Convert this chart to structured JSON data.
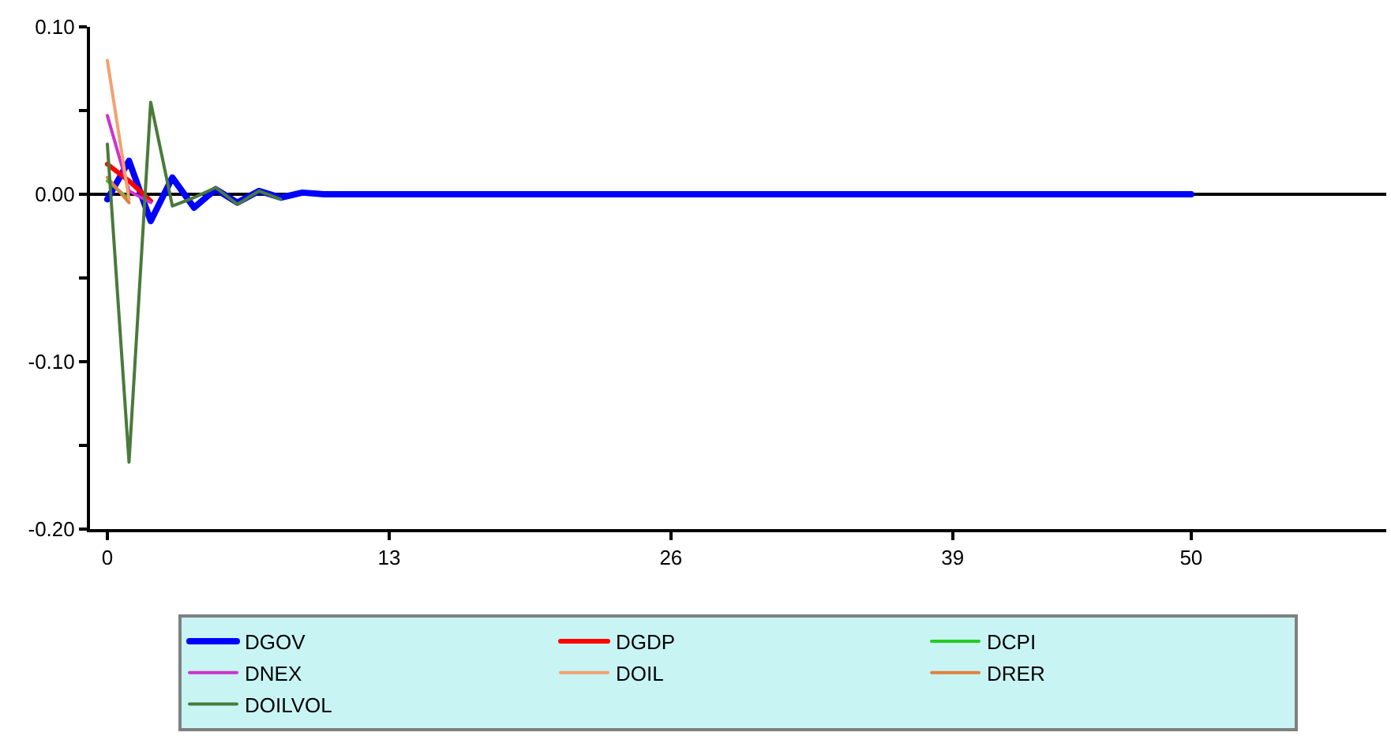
{
  "chart_data": {
    "type": "line",
    "legend": "bottom",
    "grid": false,
    "marker": "none",
    "x": [
      0,
      1,
      2,
      3,
      4,
      5,
      6,
      7,
      8,
      9,
      10,
      11,
      12,
      13,
      14,
      15,
      16,
      17,
      18,
      19,
      20,
      21,
      22,
      23,
      24,
      25,
      26,
      27,
      28,
      29,
      30,
      31,
      32,
      33,
      34,
      35,
      36,
      37,
      38,
      39,
      40,
      41,
      42,
      43,
      44,
      45,
      46,
      47,
      48,
      49,
      50
    ],
    "xlim": [
      -0.8,
      59
    ],
    "xticks": [
      0,
      13,
      26,
      39,
      50
    ],
    "ylim": [
      -0.2,
      0.1
    ],
    "yticks": [
      {
        "value": 0.1,
        "label": "0.10"
      },
      {
        "value": 0.05,
        "label": null
      },
      {
        "value": 0.0,
        "label": "0.00"
      },
      {
        "value": -0.05,
        "label": null
      },
      {
        "value": -0.1,
        "label": "-0.10"
      },
      {
        "value": -0.15,
        "label": null
      },
      {
        "value": -0.2,
        "label": "-0.20"
      }
    ],
    "ref_lines": [
      {
        "axis": "y",
        "value": 0,
        "color": "#000000"
      }
    ],
    "series": [
      {
        "name": "DGOV",
        "color": "#0000ff",
        "values": [
          -0.003,
          0.02,
          -0.016,
          0.01,
          -0.008,
          0.003,
          -0.005,
          0.002,
          -0.002,
          0.001,
          0,
          0,
          0,
          0,
          0,
          0,
          0,
          0,
          0,
          0,
          0,
          0,
          0,
          0,
          0,
          0,
          0,
          0,
          0,
          0,
          0,
          0,
          0,
          0,
          0,
          0,
          0,
          0,
          0,
          0,
          0,
          0,
          0,
          0,
          0,
          0,
          0,
          0,
          0,
          0,
          0
        ]
      },
      {
        "name": "DGDP",
        "color": "#ff0000",
        "values": [
          0.018,
          0.008,
          -0.004,
          null,
          null,
          null,
          null,
          null,
          null,
          null,
          null,
          null,
          null,
          null,
          null,
          null,
          null,
          null,
          null,
          null,
          null,
          null,
          null,
          null,
          null,
          null,
          null,
          null,
          null,
          null,
          null,
          null,
          null,
          null,
          null,
          null,
          null,
          null,
          null,
          null,
          null,
          null,
          null,
          null,
          null,
          null,
          null,
          null,
          null,
          null,
          null
        ]
      },
      {
        "name": "DCPI",
        "color": "#22cc22",
        "values": [
          0.008,
          -0.003,
          null,
          null,
          null,
          null,
          null,
          null,
          null,
          null,
          null,
          null,
          null,
          null,
          null,
          null,
          null,
          null,
          null,
          null,
          null,
          null,
          null,
          null,
          null,
          null,
          null,
          null,
          null,
          null,
          null,
          null,
          null,
          null,
          null,
          null,
          null,
          null,
          null,
          null,
          null,
          null,
          null,
          null,
          null,
          null,
          null,
          null,
          null,
          null,
          null
        ]
      },
      {
        "name": "DNEX",
        "color": "#cc33cc",
        "values": [
          0.047,
          0.002,
          -0.005,
          null,
          null,
          null,
          null,
          null,
          null,
          null,
          null,
          null,
          null,
          null,
          null,
          null,
          null,
          null,
          null,
          null,
          null,
          null,
          null,
          null,
          null,
          null,
          null,
          null,
          null,
          null,
          null,
          null,
          null,
          null,
          null,
          null,
          null,
          null,
          null,
          null,
          null,
          null,
          null,
          null,
          null,
          null,
          null,
          null,
          null,
          null,
          null
        ]
      },
      {
        "name": "DOIL",
        "color": "#f4a070",
        "values": [
          0.08,
          -0.003,
          null,
          null,
          null,
          null,
          null,
          null,
          null,
          null,
          null,
          null,
          null,
          null,
          null,
          null,
          null,
          null,
          null,
          null,
          null,
          null,
          null,
          null,
          null,
          null,
          null,
          null,
          null,
          null,
          null,
          null,
          null,
          null,
          null,
          null,
          null,
          null,
          null,
          null,
          null,
          null,
          null,
          null,
          null,
          null,
          null,
          null,
          null,
          null,
          null
        ]
      },
      {
        "name": "DRER",
        "color": "#e08040",
        "values": [
          0.01,
          -0.005,
          null,
          null,
          null,
          null,
          null,
          null,
          null,
          null,
          null,
          null,
          null,
          null,
          null,
          null,
          null,
          null,
          null,
          null,
          null,
          null,
          null,
          null,
          null,
          null,
          null,
          null,
          null,
          null,
          null,
          null,
          null,
          null,
          null,
          null,
          null,
          null,
          null,
          null,
          null,
          null,
          null,
          null,
          null,
          null,
          null,
          null,
          null,
          null,
          null
        ]
      },
      {
        "name": "DOILVOL",
        "color": "#4a7a3a",
        "values": [
          0.03,
          -0.16,
          0.055,
          -0.007,
          -0.002,
          0.004,
          -0.006,
          0.002,
          -0.003,
          null,
          null,
          null,
          null,
          null,
          null,
          null,
          null,
          null,
          null,
          null,
          null,
          null,
          null,
          null,
          null,
          null,
          null,
          null,
          null,
          null,
          null,
          null,
          null,
          null,
          null,
          null,
          null,
          null,
          null,
          null,
          null,
          null,
          null,
          null,
          null,
          null,
          null,
          null,
          null,
          null,
          null
        ]
      }
    ]
  }
}
